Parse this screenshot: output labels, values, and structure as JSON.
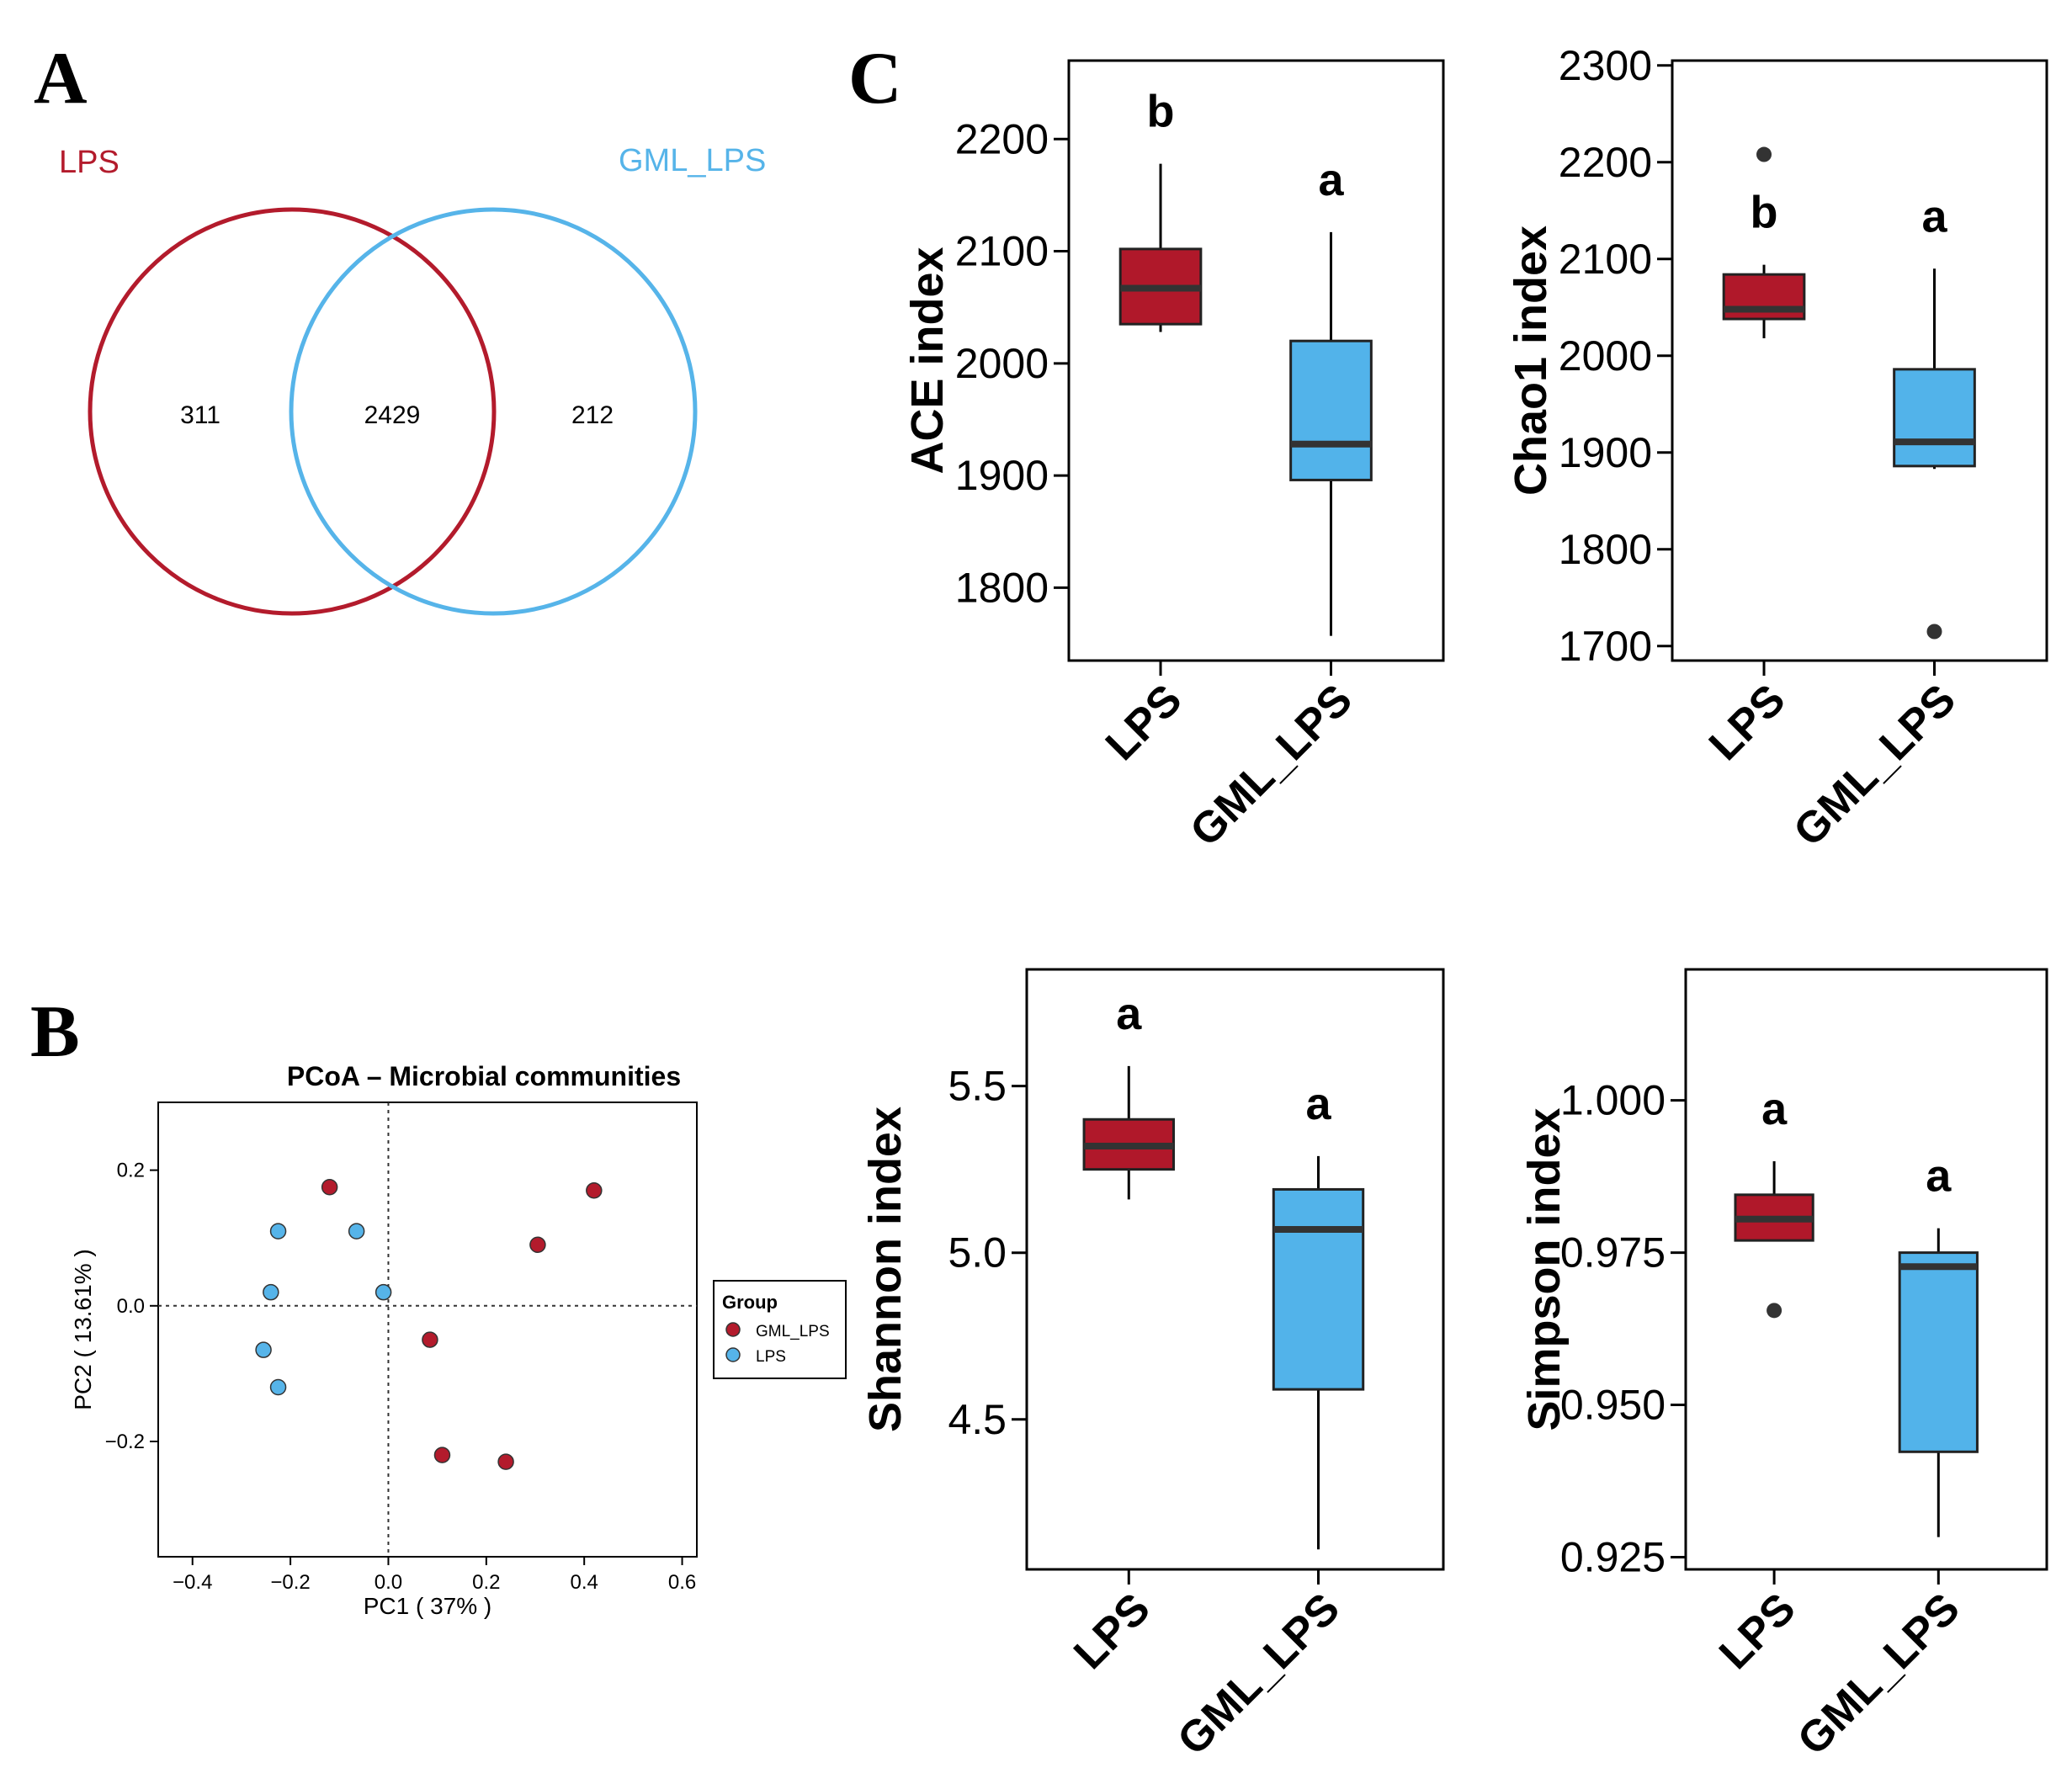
{
  "figure": {
    "panel_letters": [
      "A",
      "B",
      "C"
    ]
  },
  "colors": {
    "lps": "#b31b2c",
    "gml_lps": "#56b4e9",
    "lps_fill": "#b0182a",
    "gml_fill": "#52b3ea",
    "axis": "#000000",
    "outlier": "#333333"
  },
  "chart_data": [
    {
      "id": "venn",
      "type": "venn",
      "sets": [
        "LPS",
        "GML_LPS"
      ],
      "only_lps": "311",
      "shared": "2429",
      "only_gml_lps": "212"
    },
    {
      "id": "pcoa",
      "type": "scatter",
      "title": "PCoA – Microbial communities",
      "xlabel": "PC1 ( 37% )",
      "ylabel": "PC2 ( 13.61% )",
      "xlim": [
        -0.47,
        0.63
      ],
      "ylim": [
        -0.37,
        0.3
      ],
      "xticks": [
        "−0.4",
        "−0.2",
        "0.0",
        "0.2",
        "0.4",
        "0.6"
      ],
      "xtick_values": [
        -0.4,
        -0.2,
        0.0,
        0.2,
        0.4,
        0.6
      ],
      "yticks": [
        "−0.2",
        "0.0",
        "0.2"
      ],
      "ytick_values": [
        -0.2,
        0.0,
        0.2
      ],
      "legend_title": "Group",
      "legend": [
        "GML_LPS",
        "LPS"
      ],
      "series": [
        {
          "name": "GML_LPS",
          "points": [
            [
              -0.12,
              0.175
            ],
            [
              0.42,
              0.17
            ],
            [
              0.305,
              0.09
            ],
            [
              0.085,
              -0.05
            ],
            [
              0.11,
              -0.22
            ],
            [
              0.24,
              -0.23
            ]
          ]
        },
        {
          "name": "LPS",
          "points": [
            [
              -0.225,
              0.11
            ],
            [
              -0.065,
              0.11
            ],
            [
              -0.24,
              0.02
            ],
            [
              -0.01,
              0.02
            ],
            [
              -0.255,
              -0.065
            ],
            [
              -0.225,
              -0.12
            ]
          ]
        }
      ]
    },
    {
      "id": "ace",
      "type": "box",
      "ylabel": "ACE index",
      "ylim": [
        1735,
        2270
      ],
      "yticks": [
        1800,
        1900,
        2000,
        2100,
        2200
      ],
      "categories": [
        "LPS",
        "GML_LPS"
      ],
      "boxes": [
        {
          "name": "LPS",
          "whisker_low": 2028,
          "q1": 2035,
          "median": 2067,
          "q3": 2102,
          "whisker_high": 2178,
          "outliers": [],
          "letter": "b"
        },
        {
          "name": "GML_LPS",
          "whisker_low": 1757,
          "q1": 1896,
          "median": 1928,
          "q3": 2020,
          "whisker_high": 2117,
          "outliers": [],
          "letter": "a"
        }
      ]
    },
    {
      "id": "chao1",
      "type": "box",
      "ylabel": "Chao1 index",
      "ylim": [
        1685,
        2305
      ],
      "yticks": [
        1700,
        1800,
        1900,
        2000,
        2100,
        2200,
        2300
      ],
      "categories": [
        "LPS",
        "GML_LPS"
      ],
      "boxes": [
        {
          "name": "LPS",
          "whisker_low": 2018,
          "q1": 2038,
          "median": 2048,
          "q3": 2084,
          "whisker_high": 2094,
          "outliers": [
            2208
          ],
          "letter": "b"
        },
        {
          "name": "GML_LPS",
          "whisker_low": 1883,
          "q1": 1886,
          "median": 1911,
          "q3": 1986,
          "whisker_high": 2090,
          "outliers": [
            1715
          ],
          "letter": "a"
        }
      ]
    },
    {
      "id": "shannon",
      "type": "box",
      "ylabel": "Shannon index",
      "ylim": [
        4.05,
        5.85
      ],
      "yticks": [
        "4.5",
        "5.0",
        "5.5"
      ],
      "ytick_values": [
        4.5,
        5.0,
        5.5
      ],
      "categories": [
        "LPS",
        "GML_LPS"
      ],
      "boxes": [
        {
          "name": "LPS",
          "whisker_low": 5.16,
          "q1": 5.25,
          "median": 5.32,
          "q3": 5.4,
          "whisker_high": 5.56,
          "outliers": [],
          "letter": "a"
        },
        {
          "name": "GML_LPS",
          "whisker_low": 4.11,
          "q1": 4.59,
          "median": 5.07,
          "q3": 5.19,
          "whisker_high": 5.29,
          "outliers": [],
          "letter": "a"
        }
      ]
    },
    {
      "id": "simpson",
      "type": "box",
      "ylabel": "Simpson index",
      "ylim": [
        0.923,
        1.0215
      ],
      "yticks": [
        "0.925",
        "0.950",
        "0.975",
        "1.000"
      ],
      "ytick_values": [
        0.925,
        0.95,
        0.975,
        1.0
      ],
      "categories": [
        "LPS",
        "GML_LPS"
      ],
      "boxes": [
        {
          "name": "LPS",
          "whisker_low": 0.977,
          "q1": 0.977,
          "median": 0.9805,
          "q3": 0.9845,
          "whisker_high": 0.99,
          "outliers": [
            0.9655
          ],
          "letter": "a"
        },
        {
          "name": "GML_LPS",
          "whisker_low": 0.9283,
          "q1": 0.9423,
          "median": 0.9727,
          "q3": 0.975,
          "whisker_high": 0.979,
          "outliers": [],
          "letter": "a"
        }
      ]
    }
  ]
}
